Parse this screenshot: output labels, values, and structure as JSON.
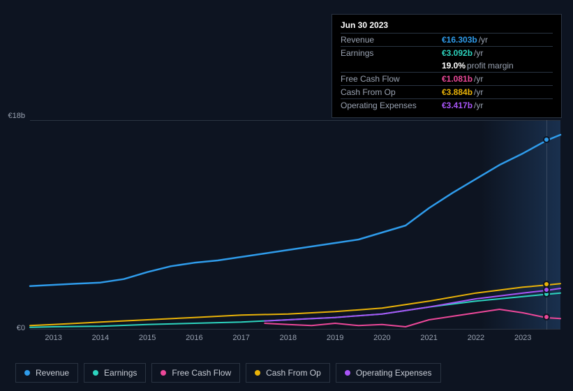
{
  "background_color": "#0d1421",
  "grid_color": "#2a3442",
  "tooltip": {
    "date": "Jun 30 2023",
    "rows": [
      {
        "label": "Revenue",
        "value": "€16.303b",
        "unit": "/yr",
        "color": "#2f9ceb"
      },
      {
        "label": "Earnings",
        "value": "€3.092b",
        "unit": "/yr",
        "color": "#2dd4bf"
      },
      {
        "label": "",
        "value": "19.0%",
        "unit": "profit margin",
        "color": "#ffffff",
        "noborder": true
      },
      {
        "label": "Free Cash Flow",
        "value": "€1.081b",
        "unit": "/yr",
        "color": "#ec4899"
      },
      {
        "label": "Cash From Op",
        "value": "€3.884b",
        "unit": "/yr",
        "color": "#eab308"
      },
      {
        "label": "Operating Expenses",
        "value": "€3.417b",
        "unit": "/yr",
        "color": "#a855f7"
      }
    ]
  },
  "chart": {
    "type": "line",
    "ylim": [
      0,
      18
    ],
    "y_unit_prefix": "€",
    "y_unit_suffix": "b",
    "y_labels": [
      {
        "value": 18,
        "label": "€18b"
      },
      {
        "value": 0,
        "label": "€0"
      }
    ],
    "x_range": [
      2012.5,
      2023.8
    ],
    "x_ticks": [
      2013,
      2014,
      2015,
      2016,
      2017,
      2018,
      2019,
      2020,
      2021,
      2022,
      2023
    ],
    "crosshair_x": 2023.5,
    "series": [
      {
        "name": "Revenue",
        "color": "#2f9ceb",
        "line_width": 2.5,
        "points": [
          [
            2012.5,
            3.8
          ],
          [
            2013,
            3.9
          ],
          [
            2013.5,
            4.0
          ],
          [
            2014,
            4.1
          ],
          [
            2014.5,
            4.4
          ],
          [
            2015,
            5.0
          ],
          [
            2015.5,
            5.5
          ],
          [
            2016,
            5.8
          ],
          [
            2016.5,
            6.0
          ],
          [
            2017,
            6.3
          ],
          [
            2017.5,
            6.6
          ],
          [
            2018,
            6.9
          ],
          [
            2018.5,
            7.2
          ],
          [
            2019,
            7.5
          ],
          [
            2019.5,
            7.8
          ],
          [
            2020,
            8.4
          ],
          [
            2020.5,
            9.0
          ],
          [
            2021,
            10.5
          ],
          [
            2021.5,
            11.8
          ],
          [
            2022,
            13.0
          ],
          [
            2022.5,
            14.2
          ],
          [
            2023,
            15.2
          ],
          [
            2023.5,
            16.3
          ],
          [
            2023.8,
            16.8
          ]
        ]
      },
      {
        "name": "Earnings",
        "color": "#2dd4bf",
        "line_width": 2,
        "points": [
          [
            2012.5,
            0.25
          ],
          [
            2013,
            0.3
          ],
          [
            2014,
            0.35
          ],
          [
            2015,
            0.5
          ],
          [
            2016,
            0.6
          ],
          [
            2017,
            0.7
          ],
          [
            2018,
            0.9
          ],
          [
            2019,
            1.1
          ],
          [
            2020,
            1.4
          ],
          [
            2021,
            2.0
          ],
          [
            2022,
            2.5
          ],
          [
            2023,
            2.9
          ],
          [
            2023.5,
            3.09
          ],
          [
            2023.8,
            3.2
          ]
        ]
      },
      {
        "name": "Free Cash Flow",
        "color": "#ec4899",
        "line_width": 2,
        "points": [
          [
            2017.5,
            0.6
          ],
          [
            2018,
            0.5
          ],
          [
            2018.5,
            0.4
          ],
          [
            2019,
            0.6
          ],
          [
            2019.5,
            0.4
          ],
          [
            2020,
            0.5
          ],
          [
            2020.5,
            0.3
          ],
          [
            2021,
            0.9
          ],
          [
            2021.5,
            1.2
          ],
          [
            2022,
            1.5
          ],
          [
            2022.5,
            1.8
          ],
          [
            2023,
            1.5
          ],
          [
            2023.5,
            1.08
          ],
          [
            2023.8,
            1.0
          ]
        ]
      },
      {
        "name": "Cash From Op",
        "color": "#eab308",
        "line_width": 2,
        "points": [
          [
            2012.5,
            0.4
          ],
          [
            2013,
            0.5
          ],
          [
            2014,
            0.7
          ],
          [
            2015,
            0.9
          ],
          [
            2016,
            1.1
          ],
          [
            2017,
            1.3
          ],
          [
            2018,
            1.4
          ],
          [
            2019,
            1.6
          ],
          [
            2020,
            1.9
          ],
          [
            2021,
            2.5
          ],
          [
            2022,
            3.2
          ],
          [
            2023,
            3.7
          ],
          [
            2023.5,
            3.88
          ],
          [
            2023.8,
            4.0
          ]
        ]
      },
      {
        "name": "Operating Expenses",
        "color": "#a855f7",
        "line_width": 2,
        "points": [
          [
            2017.5,
            0.8
          ],
          [
            2018,
            0.9
          ],
          [
            2018.5,
            1.0
          ],
          [
            2019,
            1.1
          ],
          [
            2020,
            1.4
          ],
          [
            2021,
            2.0
          ],
          [
            2022,
            2.7
          ],
          [
            2023,
            3.2
          ],
          [
            2023.5,
            3.42
          ],
          [
            2023.8,
            3.6
          ]
        ]
      }
    ]
  },
  "legend": [
    {
      "label": "Revenue",
      "color": "#2f9ceb"
    },
    {
      "label": "Earnings",
      "color": "#2dd4bf"
    },
    {
      "label": "Free Cash Flow",
      "color": "#ec4899"
    },
    {
      "label": "Cash From Op",
      "color": "#eab308"
    },
    {
      "label": "Operating Expenses",
      "color": "#a855f7"
    }
  ]
}
